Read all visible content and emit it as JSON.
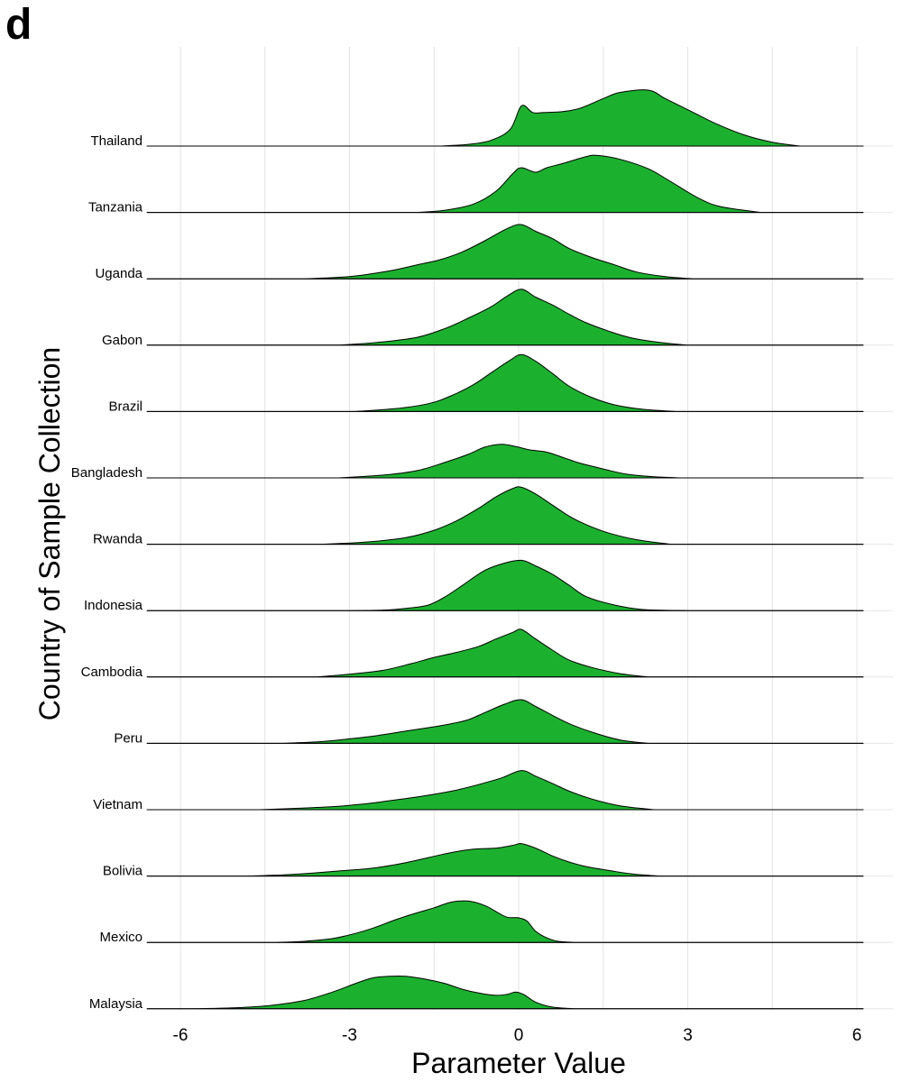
{
  "panel_label": "d",
  "chart_data": {
    "type": "ridgeline",
    "xlabel": "Parameter Value",
    "ylabel": "Country of Sample Collection",
    "xlim": [
      -6.6,
      6.5
    ],
    "xticks": [
      -6,
      -3,
      0,
      3,
      6
    ],
    "xtick_labels": [
      "-6",
      "-3",
      "0",
      "3",
      "6"
    ],
    "grid": true,
    "fill_color": "#1bb12e",
    "categories": [
      "Thailand",
      "Tanzania",
      "Uganda",
      "Gabon",
      "Brazil",
      "Bangladesh",
      "Rwanda",
      "Indonesia",
      "Cambodia",
      "Peru",
      "Vietnam",
      "Bolivia",
      "Mexico",
      "Malaysia"
    ],
    "series": [
      {
        "name": "Thailand",
        "x": [
          -1.4,
          -0.9,
          -0.5,
          -0.15,
          0.05,
          0.25,
          0.45,
          0.8,
          1.1,
          1.5,
          1.8,
          2.3,
          2.6,
          3.0,
          3.5,
          4.0,
          4.5,
          5.0
        ],
        "y": [
          0,
          0.03,
          0.1,
          0.3,
          0.72,
          0.6,
          0.6,
          0.62,
          0.68,
          0.85,
          0.96,
          1.0,
          0.85,
          0.65,
          0.4,
          0.2,
          0.07,
          0
        ]
      },
      {
        "name": "Tanzania",
        "x": [
          -1.8,
          -1.3,
          -0.8,
          -0.4,
          -0.1,
          0.05,
          0.3,
          0.5,
          0.8,
          1.2,
          1.4,
          1.8,
          2.3,
          2.7,
          3.2,
          3.6,
          4.3
        ],
        "y": [
          0,
          0.04,
          0.15,
          0.38,
          0.7,
          0.8,
          0.72,
          0.8,
          0.88,
          1.0,
          1.02,
          0.95,
          0.78,
          0.55,
          0.25,
          0.1,
          0
        ]
      },
      {
        "name": "Uganda",
        "x": [
          -3.8,
          -3.0,
          -2.3,
          -1.8,
          -1.4,
          -1.0,
          -0.6,
          -0.2,
          0.05,
          0.3,
          0.6,
          0.9,
          1.3,
          1.7,
          2.1,
          2.6,
          3.1
        ],
        "y": [
          0,
          0.04,
          0.14,
          0.25,
          0.34,
          0.48,
          0.68,
          0.9,
          0.97,
          0.85,
          0.72,
          0.54,
          0.38,
          0.25,
          0.12,
          0.04,
          0
        ]
      },
      {
        "name": "Gabon",
        "x": [
          -3.2,
          -2.5,
          -1.8,
          -1.3,
          -0.9,
          -0.5,
          -0.2,
          0.05,
          0.3,
          0.6,
          0.9,
          1.2,
          1.6,
          2.0,
          2.5,
          3.0
        ],
        "y": [
          0,
          0.05,
          0.14,
          0.3,
          0.48,
          0.68,
          0.88,
          1.0,
          0.86,
          0.72,
          0.55,
          0.4,
          0.25,
          0.13,
          0.05,
          0
        ]
      },
      {
        "name": "Brazil",
        "x": [
          -2.9,
          -2.2,
          -1.6,
          -1.2,
          -0.8,
          -0.45,
          -0.15,
          0.05,
          0.3,
          0.6,
          0.9,
          1.3,
          1.7,
          2.2,
          2.8
        ],
        "y": [
          0,
          0.05,
          0.14,
          0.28,
          0.48,
          0.72,
          0.92,
          1.02,
          0.9,
          0.68,
          0.45,
          0.25,
          0.12,
          0.04,
          0
        ]
      },
      {
        "name": "Bangladesh",
        "x": [
          -3.2,
          -2.4,
          -1.8,
          -1.3,
          -0.9,
          -0.6,
          -0.3,
          -0.05,
          0.2,
          0.5,
          0.8,
          1.1,
          1.5,
          1.9,
          2.4,
          2.9
        ],
        "y": [
          0,
          0.05,
          0.13,
          0.28,
          0.42,
          0.55,
          0.6,
          0.56,
          0.5,
          0.46,
          0.36,
          0.26,
          0.16,
          0.07,
          0.02,
          0
        ]
      },
      {
        "name": "Rwanda",
        "x": [
          -3.5,
          -2.7,
          -2.0,
          -1.5,
          -1.1,
          -0.7,
          -0.4,
          -0.1,
          0.05,
          0.3,
          0.6,
          0.9,
          1.2,
          1.6,
          2.1,
          2.7
        ],
        "y": [
          0,
          0.04,
          0.12,
          0.25,
          0.42,
          0.65,
          0.85,
          1.0,
          1.02,
          0.9,
          0.7,
          0.5,
          0.35,
          0.2,
          0.08,
          0
        ]
      },
      {
        "name": "Indonesia",
        "x": [
          -3.0,
          -2.4,
          -2.0,
          -1.6,
          -1.3,
          -1.0,
          -0.6,
          -0.25,
          0.05,
          0.3,
          0.6,
          0.9,
          1.2,
          1.7,
          2.2,
          3.0
        ],
        "y": [
          0,
          0.01,
          0.04,
          0.1,
          0.25,
          0.45,
          0.72,
          0.85,
          0.9,
          0.8,
          0.65,
          0.45,
          0.25,
          0.1,
          0.02,
          0
        ]
      },
      {
        "name": "Cambodia",
        "x": [
          -3.6,
          -3.0,
          -2.4,
          -1.9,
          -1.5,
          -1.1,
          -0.7,
          -0.4,
          -0.1,
          0.05,
          0.3,
          0.6,
          0.9,
          1.3,
          1.8,
          2.3
        ],
        "y": [
          0,
          0.05,
          0.12,
          0.24,
          0.35,
          0.44,
          0.55,
          0.68,
          0.8,
          0.85,
          0.68,
          0.48,
          0.3,
          0.17,
          0.06,
          0
        ]
      },
      {
        "name": "Peru",
        "x": [
          -4.2,
          -3.5,
          -3.0,
          -2.5,
          -2.0,
          -1.6,
          -1.2,
          -0.9,
          -0.6,
          -0.25,
          0.05,
          0.3,
          0.6,
          0.9,
          1.3,
          1.8,
          2.3
        ],
        "y": [
          0,
          0.03,
          0.08,
          0.14,
          0.22,
          0.28,
          0.35,
          0.42,
          0.55,
          0.7,
          0.78,
          0.66,
          0.5,
          0.35,
          0.2,
          0.06,
          0
        ]
      },
      {
        "name": "Vietnam",
        "x": [
          -4.6,
          -3.8,
          -3.2,
          -2.6,
          -2.0,
          -1.6,
          -1.2,
          -0.9,
          -0.6,
          -0.3,
          0.05,
          0.3,
          0.6,
          0.9,
          1.3,
          1.8,
          2.4
        ],
        "y": [
          0,
          0.03,
          0.06,
          0.12,
          0.2,
          0.26,
          0.33,
          0.4,
          0.48,
          0.57,
          0.7,
          0.6,
          0.47,
          0.33,
          0.19,
          0.07,
          0
        ]
      },
      {
        "name": "Bolivia",
        "x": [
          -4.8,
          -4.2,
          -3.7,
          -3.2,
          -2.6,
          -2.0,
          -1.6,
          -1.2,
          -0.8,
          -0.4,
          -0.1,
          0.05,
          0.3,
          0.6,
          0.9,
          1.2,
          1.6,
          2.0,
          2.5
        ],
        "y": [
          0,
          0.02,
          0.05,
          0.09,
          0.14,
          0.24,
          0.33,
          0.42,
          0.48,
          0.5,
          0.55,
          0.58,
          0.5,
          0.36,
          0.25,
          0.17,
          0.1,
          0.04,
          0
        ]
      },
      {
        "name": "Mexico",
        "x": [
          -4.3,
          -3.8,
          -3.3,
          -2.9,
          -2.6,
          -2.2,
          -1.9,
          -1.5,
          -1.2,
          -0.9,
          -0.6,
          -0.4,
          -0.2,
          0.0,
          0.15,
          0.3,
          0.5,
          0.7,
          1.0
        ],
        "y": [
          0,
          0.02,
          0.07,
          0.16,
          0.25,
          0.4,
          0.5,
          0.62,
          0.72,
          0.74,
          0.66,
          0.55,
          0.45,
          0.44,
          0.38,
          0.2,
          0.08,
          0.02,
          0
        ]
      },
      {
        "name": "Malaysia",
        "x": [
          -5.8,
          -5.0,
          -4.4,
          -3.8,
          -3.3,
          -2.9,
          -2.6,
          -2.3,
          -2.0,
          -1.6,
          -1.3,
          -1.0,
          -0.7,
          -0.4,
          -0.2,
          -0.05,
          0.1,
          0.3,
          0.6,
          1.0
        ],
        "y": [
          0,
          0.02,
          0.06,
          0.15,
          0.3,
          0.45,
          0.55,
          0.58,
          0.58,
          0.52,
          0.45,
          0.35,
          0.28,
          0.24,
          0.26,
          0.3,
          0.25,
          0.12,
          0.03,
          0
        ]
      }
    ]
  }
}
